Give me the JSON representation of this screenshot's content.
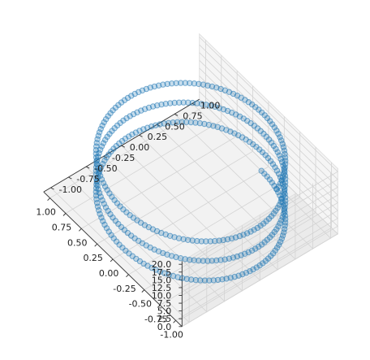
{
  "chart_data": {
    "type": "scatter",
    "projection": "3d",
    "title": "",
    "xlabel": "",
    "ylabel": "",
    "zlabel": "",
    "grid": true,
    "marker": "open-circle",
    "series": [
      {
        "parametric": {
          "x": "-sin(t)",
          "y": "cos(t)",
          "z": "t",
          "t_range": [
            0,
            20
          ],
          "points": 420
        },
        "color": "#1f77b4"
      }
    ],
    "xlim": [
      -1.1,
      1.1
    ],
    "ylim": [
      -1.1,
      1.1
    ],
    "zlim": [
      0,
      21
    ],
    "x_ticks": [
      "-1.00",
      "-0.75",
      "-0.50",
      "-0.25",
      "0.00",
      "0.25",
      "0.50",
      "0.75",
      "1.00"
    ],
    "y_ticks": [
      "-1.00",
      "-0.75",
      "-0.50",
      "-0.25",
      "0.00",
      "0.25",
      "0.50",
      "0.75",
      "1.00"
    ],
    "z_ticks": [
      "0.0",
      "2.5",
      "5.0",
      "7.5",
      "10.0",
      "12.5",
      "15.0",
      "17.5",
      "20.0"
    ]
  }
}
